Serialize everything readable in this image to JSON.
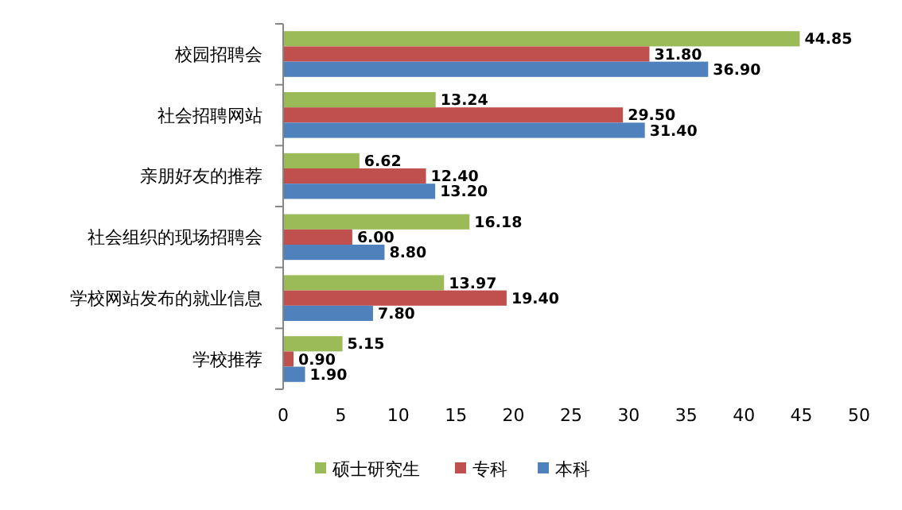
{
  "chart_data": {
    "type": "bar",
    "orientation": "horizontal",
    "categories": [
      "校园招聘会",
      "社会招聘网站",
      "亲朋好友的推荐",
      "社会组织的现场招聘会",
      "学校网站发布的就业信息",
      "学校推荐"
    ],
    "series": [
      {
        "name": "硕士研究生",
        "color": "#9bbb59",
        "values": [
          44.85,
          13.24,
          6.62,
          16.18,
          13.97,
          5.15
        ],
        "value_labels": [
          "44.85",
          "13.24",
          "6.62",
          "16.18",
          "13.97",
          "5.15"
        ]
      },
      {
        "name": "专科",
        "color": "#c0504d",
        "values": [
          31.8,
          29.5,
          12.4,
          6.0,
          19.4,
          0.9
        ],
        "value_labels": [
          "31.80",
          "29.50",
          "12.40",
          "6.00",
          "19.40",
          "0.90"
        ]
      },
      {
        "name": "本科",
        "color": "#4f81bd",
        "values": [
          36.9,
          31.4,
          13.2,
          8.8,
          7.8,
          1.9
        ],
        "value_labels": [
          "36.90",
          "31.40",
          "13.20",
          "8.80",
          "7.80",
          "1.90"
        ]
      }
    ],
    "xlim": [
      0,
      50
    ],
    "xticks": [
      0,
      5,
      10,
      15,
      20,
      25,
      30,
      35,
      40,
      45,
      50
    ],
    "legend": "bottom",
    "grid": false
  }
}
